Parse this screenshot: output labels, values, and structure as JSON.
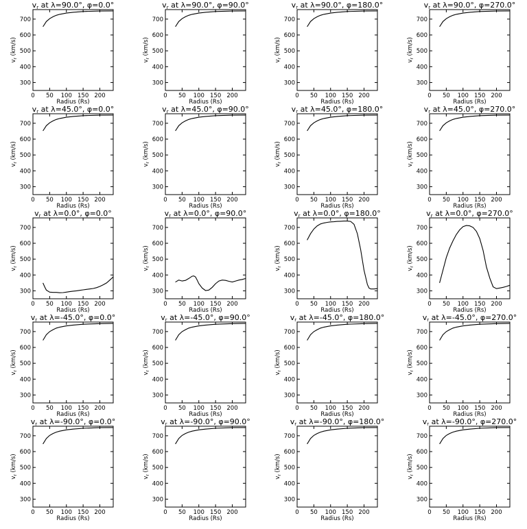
{
  "figure": {
    "background": "#ffffff",
    "line_color": "#000000"
  },
  "chart_data": [
    {
      "type": "line",
      "title": "vr at λ=90.0°, φ=0.0°",
      "xlabel": "Radius (Rs)",
      "ylabel": "vr (km/s)",
      "xlim": [
        0,
        240
      ],
      "ylim": [
        250,
        760
      ],
      "xticks": [
        0,
        50,
        100,
        150,
        200
      ],
      "yticks": [
        300,
        400,
        500,
        600,
        700
      ],
      "grid": false,
      "x": [
        30,
        40,
        50,
        60,
        70,
        80,
        100,
        120,
        150,
        200,
        240
      ],
      "y": [
        652,
        685,
        703,
        715,
        724,
        730,
        738,
        743,
        748,
        751,
        752
      ]
    },
    {
      "type": "line",
      "title": "vr at λ=90.0°, φ=90.0°",
      "xlabel": "Radius (Rs)",
      "ylabel": "vr (km/s)",
      "xlim": [
        0,
        240
      ],
      "ylim": [
        250,
        760
      ],
      "xticks": [
        0,
        50,
        100,
        150,
        200
      ],
      "yticks": [
        300,
        400,
        500,
        600,
        700
      ],
      "grid": false,
      "x": [
        30,
        40,
        50,
        60,
        70,
        80,
        100,
        120,
        150,
        200,
        240
      ],
      "y": [
        652,
        685,
        703,
        715,
        724,
        730,
        738,
        743,
        748,
        751,
        752
      ]
    },
    {
      "type": "line",
      "title": "vr at λ=90.0°, φ=180.0°",
      "xlabel": "Radius (Rs)",
      "ylabel": "vr (km/s)",
      "xlim": [
        0,
        240
      ],
      "ylim": [
        250,
        760
      ],
      "xticks": [
        0,
        50,
        100,
        150,
        200
      ],
      "yticks": [
        300,
        400,
        500,
        600,
        700
      ],
      "grid": false,
      "x": [
        30,
        40,
        50,
        60,
        70,
        80,
        100,
        120,
        150,
        200,
        240
      ],
      "y": [
        652,
        685,
        703,
        715,
        724,
        730,
        738,
        743,
        748,
        751,
        752
      ]
    },
    {
      "type": "line",
      "title": "vr at λ=90.0°, φ=270.0°",
      "xlabel": "Radius (Rs)",
      "ylabel": "vr (km/s)",
      "xlim": [
        0,
        240
      ],
      "ylim": [
        250,
        760
      ],
      "xticks": [
        0,
        50,
        100,
        150,
        200
      ],
      "yticks": [
        300,
        400,
        500,
        600,
        700
      ],
      "grid": false,
      "x": [
        30,
        40,
        50,
        60,
        70,
        80,
        100,
        120,
        150,
        200,
        240
      ],
      "y": [
        652,
        685,
        703,
        715,
        724,
        730,
        738,
        743,
        748,
        751,
        752
      ]
    },
    {
      "type": "line",
      "title": "vr at λ=45.0°, φ=0.0°",
      "xlabel": "Radius (Rs)",
      "ylabel": "vr (km/s)",
      "xlim": [
        0,
        240
      ],
      "ylim": [
        250,
        760
      ],
      "xticks": [
        0,
        50,
        100,
        150,
        200
      ],
      "yticks": [
        300,
        400,
        500,
        600,
        700
      ],
      "grid": false,
      "x": [
        30,
        40,
        50,
        60,
        70,
        80,
        100,
        120,
        150,
        200,
        240
      ],
      "y": [
        652,
        685,
        703,
        715,
        724,
        730,
        738,
        743,
        748,
        751,
        752
      ]
    },
    {
      "type": "line",
      "title": "vr at λ=45.0°, φ=90.0°",
      "xlabel": "Radius (Rs)",
      "ylabel": "vr (km/s)",
      "xlim": [
        0,
        240
      ],
      "ylim": [
        250,
        760
      ],
      "xticks": [
        0,
        50,
        100,
        150,
        200
      ],
      "yticks": [
        300,
        400,
        500,
        600,
        700
      ],
      "grid": false,
      "x": [
        30,
        40,
        50,
        60,
        70,
        80,
        100,
        120,
        150,
        200,
        240
      ],
      "y": [
        652,
        685,
        703,
        715,
        724,
        730,
        738,
        743,
        748,
        751,
        752
      ]
    },
    {
      "type": "line",
      "title": "vr at λ=45.0°, φ=180.0°",
      "xlabel": "Radius (Rs)",
      "ylabel": "vr (km/s)",
      "xlim": [
        0,
        240
      ],
      "ylim": [
        250,
        760
      ],
      "xticks": [
        0,
        50,
        100,
        150,
        200
      ],
      "yticks": [
        300,
        400,
        500,
        600,
        700
      ],
      "grid": false,
      "x": [
        30,
        40,
        50,
        60,
        70,
        80,
        100,
        120,
        150,
        200,
        240
      ],
      "y": [
        652,
        685,
        703,
        715,
        724,
        730,
        738,
        743,
        748,
        751,
        752
      ]
    },
    {
      "type": "line",
      "title": "vr at λ=45.0°, φ=270.0°",
      "xlabel": "Radius (Rs)",
      "ylabel": "vr (km/s)",
      "xlim": [
        0,
        240
      ],
      "ylim": [
        250,
        760
      ],
      "xticks": [
        0,
        50,
        100,
        150,
        200
      ],
      "yticks": [
        300,
        400,
        500,
        600,
        700
      ],
      "grid": false,
      "x": [
        30,
        40,
        50,
        60,
        70,
        80,
        100,
        120,
        150,
        200,
        240
      ],
      "y": [
        652,
        685,
        703,
        715,
        724,
        730,
        738,
        743,
        748,
        751,
        752
      ]
    },
    {
      "type": "line",
      "title": "vr at λ=0.0°, φ=0.0°",
      "xlabel": "Radius (Rs)",
      "ylabel": "vr (km/s)",
      "xlim": [
        0,
        240
      ],
      "ylim": [
        250,
        760
      ],
      "xticks": [
        0,
        50,
        100,
        150,
        200
      ],
      "yticks": [
        300,
        400,
        500,
        600,
        700
      ],
      "grid": false,
      "x": [
        30,
        35,
        40,
        50,
        60,
        70,
        80,
        90,
        100,
        110,
        120,
        130,
        140,
        150,
        160,
        170,
        180,
        190,
        200,
        210,
        220,
        230,
        240
      ],
      "y": [
        350,
        325,
        305,
        292,
        290,
        290,
        288,
        289,
        292,
        295,
        298,
        300,
        303,
        306,
        309,
        312,
        315,
        320,
        328,
        338,
        350,
        368,
        388
      ]
    },
    {
      "type": "line",
      "title": "vr at λ=0.0°, φ=90.0°",
      "xlabel": "Radius (Rs)",
      "ylabel": "vr (km/s)",
      "xlim": [
        0,
        240
      ],
      "ylim": [
        250,
        760
      ],
      "xticks": [
        0,
        50,
        100,
        150,
        200
      ],
      "yticks": [
        300,
        400,
        500,
        600,
        700
      ],
      "grid": false,
      "x": [
        30,
        40,
        50,
        60,
        70,
        80,
        85,
        90,
        95,
        100,
        110,
        120,
        130,
        140,
        150,
        160,
        170,
        180,
        190,
        200,
        210,
        220,
        230,
        240
      ],
      "y": [
        355,
        368,
        362,
        366,
        378,
        392,
        394,
        388,
        368,
        345,
        318,
        302,
        305,
        322,
        345,
        362,
        368,
        366,
        360,
        356,
        362,
        368,
        372,
        378
      ]
    },
    {
      "type": "line",
      "title": "vr at λ=0.0°, φ=180.0°",
      "xlabel": "Radius (Rs)",
      "ylabel": "vr (km/s)",
      "xlim": [
        0,
        240
      ],
      "ylim": [
        250,
        760
      ],
      "xticks": [
        0,
        50,
        100,
        150,
        200
      ],
      "yticks": [
        300,
        400,
        500,
        600,
        700
      ],
      "grid": false,
      "x": [
        30,
        40,
        50,
        60,
        70,
        80,
        90,
        100,
        110,
        120,
        130,
        140,
        150,
        160,
        170,
        180,
        190,
        200,
        210,
        215,
        220,
        230,
        240
      ],
      "y": [
        620,
        660,
        690,
        710,
        722,
        728,
        732,
        735,
        736,
        738,
        739,
        740,
        740,
        738,
        720,
        660,
        560,
        430,
        340,
        318,
        312,
        312,
        314
      ]
    },
    {
      "type": "line",
      "title": "vr at λ=0.0°, φ=270.0°",
      "xlabel": "Radius (Rs)",
      "ylabel": "vr (km/s)",
      "xlim": [
        0,
        240
      ],
      "ylim": [
        250,
        760
      ],
      "xticks": [
        0,
        50,
        100,
        150,
        200
      ],
      "yticks": [
        300,
        400,
        500,
        600,
        700
      ],
      "grid": false,
      "x": [
        30,
        40,
        50,
        60,
        70,
        80,
        90,
        100,
        110,
        120,
        130,
        140,
        150,
        160,
        170,
        180,
        190,
        200,
        210,
        220,
        230,
        240
      ],
      "y": [
        350,
        430,
        510,
        570,
        615,
        655,
        685,
        705,
        712,
        710,
        700,
        675,
        630,
        555,
        450,
        380,
        325,
        314,
        318,
        322,
        328,
        335
      ]
    },
    {
      "type": "line",
      "title": "vr at λ=-45.0°, φ=0.0°",
      "xlabel": "Radius (Rs)",
      "ylabel": "vr (km/s)",
      "xlim": [
        0,
        240
      ],
      "ylim": [
        250,
        760
      ],
      "xticks": [
        0,
        50,
        100,
        150,
        200
      ],
      "yticks": [
        300,
        400,
        500,
        600,
        700
      ],
      "grid": false,
      "x": [
        30,
        40,
        50,
        60,
        70,
        80,
        100,
        120,
        150,
        200,
        240
      ],
      "y": [
        645,
        680,
        700,
        712,
        722,
        728,
        736,
        741,
        746,
        750,
        752
      ]
    },
    {
      "type": "line",
      "title": "vr at λ=-45.0°, φ=90.0°",
      "xlabel": "Radius (Rs)",
      "ylabel": "vr (km/s)",
      "xlim": [
        0,
        240
      ],
      "ylim": [
        250,
        760
      ],
      "xticks": [
        0,
        50,
        100,
        150,
        200
      ],
      "yticks": [
        300,
        400,
        500,
        600,
        700
      ],
      "grid": false,
      "x": [
        30,
        40,
        50,
        60,
        70,
        80,
        100,
        120,
        150,
        200,
        240
      ],
      "y": [
        645,
        680,
        700,
        712,
        722,
        728,
        736,
        741,
        746,
        750,
        752
      ]
    },
    {
      "type": "line",
      "title": "vr at λ=-45.0°, φ=180.0°",
      "xlabel": "Radius (Rs)",
      "ylabel": "vr (km/s)",
      "xlim": [
        0,
        240
      ],
      "ylim": [
        250,
        760
      ],
      "xticks": [
        0,
        50,
        100,
        150,
        200
      ],
      "yticks": [
        300,
        400,
        500,
        600,
        700
      ],
      "grid": false,
      "x": [
        30,
        40,
        50,
        60,
        70,
        80,
        100,
        120,
        150,
        200,
        240
      ],
      "y": [
        645,
        680,
        700,
        712,
        722,
        728,
        736,
        741,
        746,
        750,
        752
      ]
    },
    {
      "type": "line",
      "title": "vr at λ=-45.0°, φ=270.0°",
      "xlabel": "Radius (Rs)",
      "ylabel": "vr (km/s)",
      "xlim": [
        0,
        240
      ],
      "ylim": [
        250,
        760
      ],
      "xticks": [
        0,
        50,
        100,
        150,
        200
      ],
      "yticks": [
        300,
        400,
        500,
        600,
        700
      ],
      "grid": false,
      "x": [
        30,
        40,
        50,
        60,
        70,
        80,
        100,
        120,
        150,
        200,
        240
      ],
      "y": [
        645,
        680,
        700,
        712,
        722,
        728,
        736,
        741,
        746,
        750,
        752
      ]
    },
    {
      "type": "line",
      "title": "vr at λ=-90.0°, φ=0.0°",
      "xlabel": "Radius (Rs)",
      "ylabel": "vr (km/s)",
      "xlim": [
        0,
        240
      ],
      "ylim": [
        250,
        760
      ],
      "xticks": [
        0,
        50,
        100,
        150,
        200
      ],
      "yticks": [
        300,
        400,
        500,
        600,
        700
      ],
      "grid": false,
      "x": [
        30,
        40,
        50,
        60,
        70,
        80,
        100,
        120,
        150,
        200,
        240
      ],
      "y": [
        648,
        682,
        702,
        714,
        723,
        729,
        737,
        742,
        747,
        751,
        752
      ]
    },
    {
      "type": "line",
      "title": "vr at λ=-90.0°, φ=90.0°",
      "xlabel": "Radius (Rs)",
      "ylabel": "vr (km/s)",
      "xlim": [
        0,
        240
      ],
      "ylim": [
        250,
        760
      ],
      "xticks": [
        0,
        50,
        100,
        150,
        200
      ],
      "yticks": [
        300,
        400,
        500,
        600,
        700
      ],
      "grid": false,
      "x": [
        30,
        40,
        50,
        60,
        70,
        80,
        100,
        120,
        150,
        200,
        240
      ],
      "y": [
        648,
        682,
        702,
        714,
        723,
        729,
        737,
        742,
        747,
        751,
        752
      ]
    },
    {
      "type": "line",
      "title": "vr at λ=-90.0°, φ=180.0°",
      "xlabel": "Radius (Rs)",
      "ylabel": "vr (km/s)",
      "xlim": [
        0,
        240
      ],
      "ylim": [
        250,
        760
      ],
      "xticks": [
        0,
        50,
        100,
        150,
        200
      ],
      "yticks": [
        300,
        400,
        500,
        600,
        700
      ],
      "grid": false,
      "x": [
        30,
        40,
        50,
        60,
        70,
        80,
        100,
        120,
        150,
        200,
        240
      ],
      "y": [
        648,
        682,
        702,
        714,
        723,
        729,
        737,
        742,
        747,
        751,
        752
      ]
    },
    {
      "type": "line",
      "title": "vr at λ=-90.0°, φ=270.0°",
      "xlabel": "Radius (Rs)",
      "ylabel": "vr (km/s)",
      "xlim": [
        0,
        240
      ],
      "ylim": [
        250,
        760
      ],
      "xticks": [
        0,
        50,
        100,
        150,
        200
      ],
      "yticks": [
        300,
        400,
        500,
        600,
        700
      ],
      "grid": false,
      "x": [
        30,
        40,
        50,
        60,
        70,
        80,
        100,
        120,
        150,
        200,
        240
      ],
      "y": [
        648,
        682,
        702,
        714,
        723,
        729,
        737,
        742,
        747,
        751,
        752
      ]
    }
  ]
}
